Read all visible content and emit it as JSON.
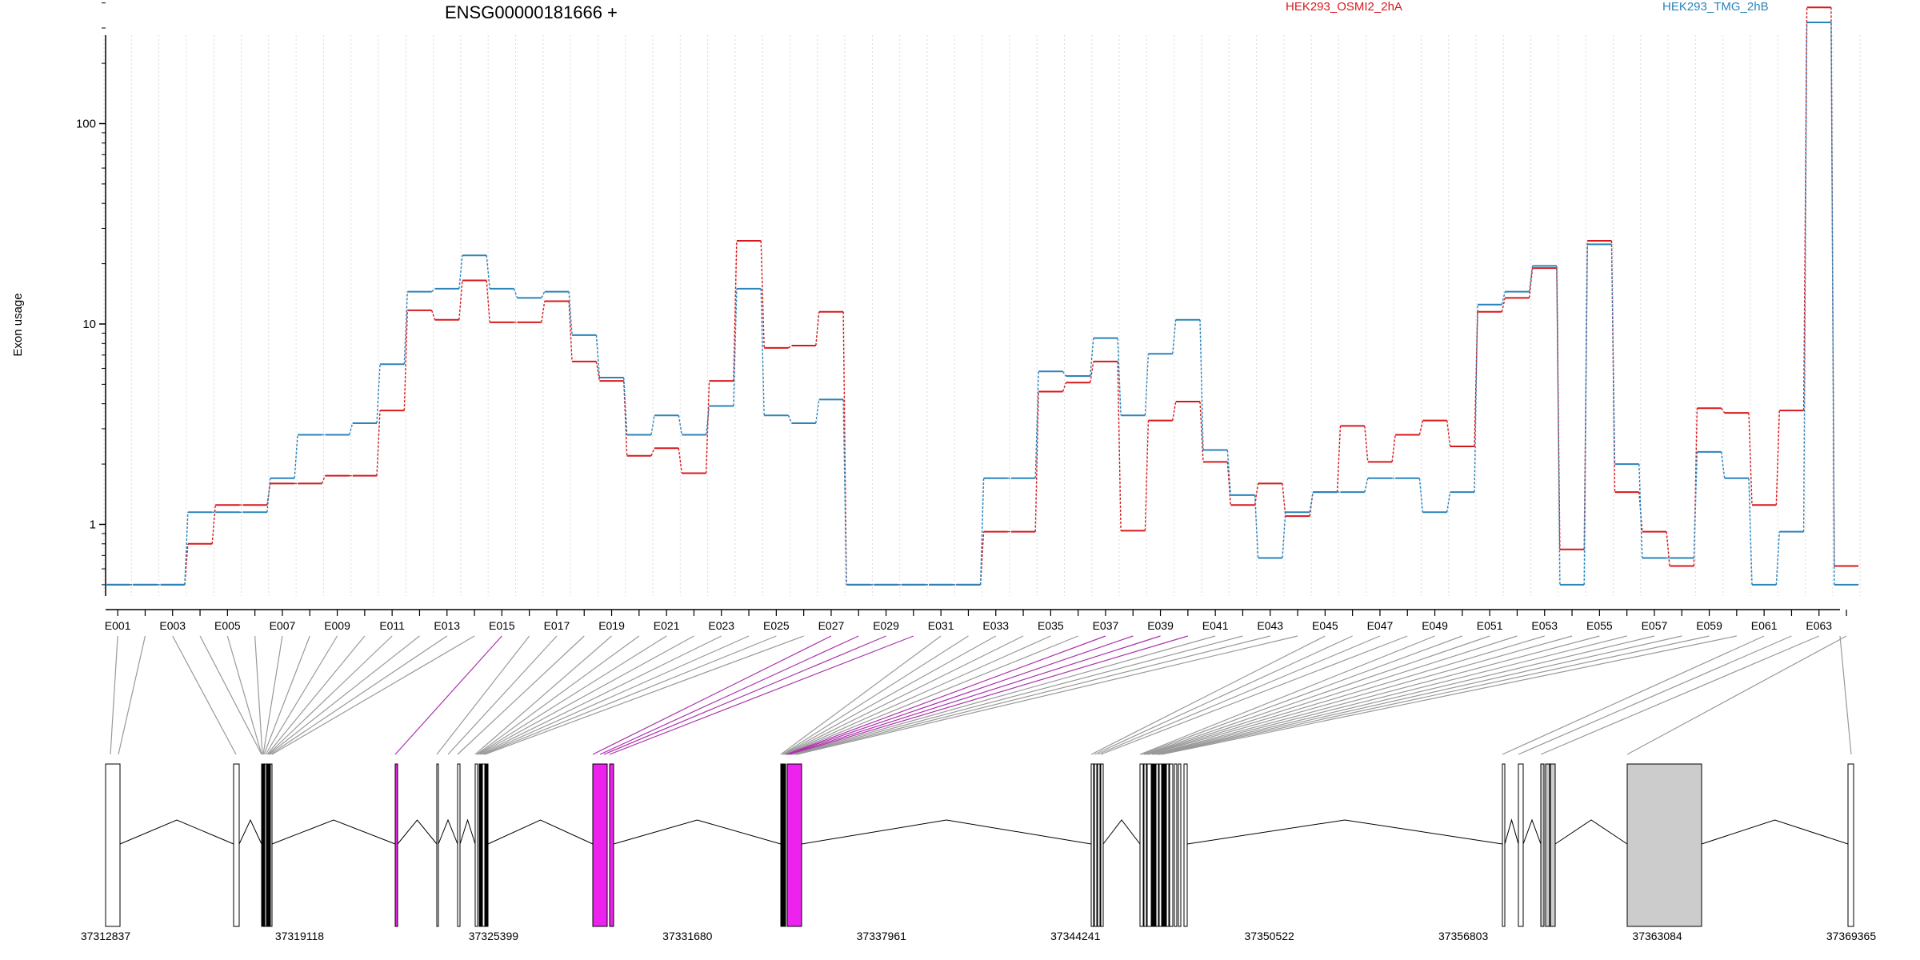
{
  "chart_data": {
    "type": "line",
    "title": "ENSG00000181666 +",
    "xlabel": "",
    "ylabel": "Exon usage",
    "y_scale": "log",
    "y_ticks": [
      1,
      10,
      100
    ],
    "y_tick_labels": [
      "1",
      "10",
      "100"
    ],
    "ylim": [
      0.47,
      500
    ],
    "grid": "vertical dotted",
    "legend_position": "top",
    "series": [
      {
        "name": "HEK293_OSMI2_2hA",
        "color": "#d7191c",
        "values": [
          0.5,
          0.5,
          0.5,
          0.8,
          1.25,
          1.25,
          1.6,
          1.6,
          1.75,
          1.75,
          3.7,
          11.7,
          10.5,
          16.5,
          10.2,
          10.2,
          13.0,
          6.5,
          5.2,
          2.2,
          2.4,
          1.8,
          5.2,
          26.0,
          7.6,
          7.8,
          11.5,
          0.5,
          0.5,
          0.5,
          0.5,
          0.5,
          0.92,
          0.92,
          4.6,
          5.1,
          6.5,
          0.93,
          3.3,
          4.1,
          2.05,
          1.25,
          1.6,
          1.1,
          1.45,
          3.1,
          2.05,
          2.8,
          3.3,
          2.45,
          11.5,
          13.5,
          19.0,
          0.75,
          26.0,
          1.45,
          0.92,
          0.62,
          3.8,
          3.6,
          1.25,
          3.7,
          380.0,
          0.62
        ]
      },
      {
        "name": "HEK293_TMG_2hB",
        "color": "#2b83ba",
        "values": [
          0.5,
          0.5,
          0.5,
          1.15,
          1.15,
          1.15,
          1.7,
          2.8,
          2.8,
          3.2,
          6.3,
          14.5,
          15.0,
          22.0,
          15.0,
          13.5,
          14.5,
          8.8,
          5.4,
          2.8,
          3.5,
          2.8,
          3.9,
          15.0,
          3.5,
          3.2,
          4.2,
          0.5,
          0.5,
          0.5,
          0.5,
          0.5,
          1.7,
          1.7,
          5.8,
          5.5,
          8.5,
          3.5,
          7.1,
          10.5,
          2.35,
          1.4,
          0.68,
          1.15,
          1.45,
          1.45,
          1.7,
          1.7,
          1.15,
          1.45,
          12.5,
          14.5,
          19.5,
          0.5,
          25.0,
          2.0,
          0.68,
          0.68,
          2.3,
          1.7,
          0.5,
          0.92,
          320.0,
          0.5
        ]
      }
    ],
    "exon_tick_labels": [
      "E001",
      "E003",
      "E005",
      "E007",
      "E009",
      "E011",
      "E013",
      "E015",
      "E017",
      "E019",
      "E021",
      "E023",
      "E025",
      "E027",
      "E029",
      "E031",
      "E033",
      "E035",
      "E037",
      "E039",
      "E041",
      "E043",
      "E045",
      "E047",
      "E049",
      "E051",
      "E053",
      "E055",
      "E057",
      "E059",
      "E061",
      "E063"
    ],
    "genomic_coordinates": [
      "37312837",
      "37319118",
      "37325399",
      "37331680",
      "37337961",
      "37344241",
      "37350522",
      "37356803",
      "37363084",
      "37369365"
    ],
    "highlight_color": "#ee22ee",
    "exon_fill_color": "#cccccc"
  }
}
